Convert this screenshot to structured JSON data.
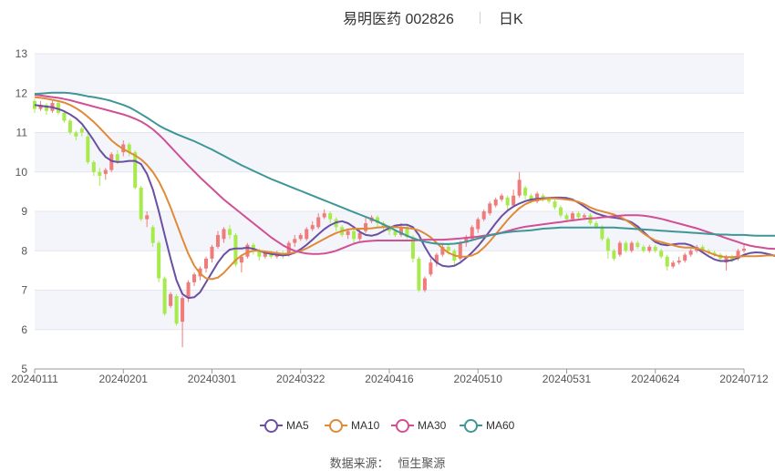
{
  "header": {
    "title": "易明医药 002826",
    "period": "日K"
  },
  "legend": [
    {
      "name": "MA5",
      "color": "#6a4fa3"
    },
    {
      "name": "MA10",
      "color": "#e08a38"
    },
    {
      "name": "MA30",
      "color": "#d14f93"
    },
    {
      "name": "MA60",
      "color": "#3e9696"
    }
  ],
  "source": {
    "label": "数据来源：",
    "value": "恒生聚源"
  },
  "colors": {
    "up": "#f07b7b",
    "down": "#a7ea4b",
    "grid": "#e4e6ee",
    "band": "#f3f5fb"
  },
  "chart_data": {
    "type": "candlestick",
    "ylim": [
      5,
      13
    ],
    "yticks": [
      5,
      6,
      7,
      8,
      9,
      10,
      11,
      12,
      13
    ],
    "xticks": [
      "20240111",
      "20240201",
      "20240301",
      "20240322",
      "20240416",
      "20240510",
      "20240531",
      "20240624",
      "20240712"
    ],
    "candles": [
      [
        11.8,
        11.6,
        11.85,
        11.5
      ],
      [
        11.6,
        11.7,
        11.8,
        11.55
      ],
      [
        11.7,
        11.55,
        11.75,
        11.45
      ],
      [
        11.55,
        11.75,
        11.8,
        11.5
      ],
      [
        11.75,
        11.5,
        11.8,
        11.45
      ],
      [
        11.5,
        11.3,
        11.55,
        11.25
      ],
      [
        11.3,
        11.0,
        11.35,
        10.95
      ],
      [
        11.0,
        10.9,
        11.05,
        10.8
      ],
      [
        11.1,
        11.0,
        11.15,
        10.9
      ],
      [
        10.9,
        10.25,
        11.0,
        10.2
      ],
      [
        10.25,
        10.0,
        10.3,
        9.9
      ],
      [
        10.0,
        9.9,
        10.1,
        9.65
      ],
      [
        9.95,
        10.05,
        10.1,
        9.8
      ],
      [
        10.05,
        10.45,
        10.5,
        10.0
      ],
      [
        10.45,
        10.25,
        10.55,
        10.2
      ],
      [
        10.5,
        10.7,
        10.8,
        10.4
      ],
      [
        10.7,
        10.5,
        10.75,
        10.4
      ],
      [
        10.5,
        9.6,
        10.55,
        9.55
      ],
      [
        9.6,
        8.8,
        9.65,
        8.75
      ],
      [
        8.8,
        8.9,
        9.0,
        8.6
      ],
      [
        8.6,
        8.2,
        8.65,
        8.1
      ],
      [
        8.2,
        7.3,
        8.25,
        7.2
      ],
      [
        7.3,
        6.4,
        7.35,
        6.35
      ],
      [
        6.6,
        6.9,
        6.95,
        6.55
      ],
      [
        6.85,
        6.15,
        6.9,
        6.1
      ],
      [
        6.2,
        6.8,
        6.85,
        5.55
      ],
      [
        6.8,
        7.2,
        7.25,
        6.7
      ],
      [
        7.2,
        7.4,
        7.45,
        7.1
      ],
      [
        7.35,
        7.55,
        7.6,
        7.25
      ],
      [
        7.55,
        7.8,
        7.85,
        7.45
      ],
      [
        7.8,
        8.1,
        8.15,
        7.7
      ],
      [
        8.1,
        8.4,
        8.5,
        8.05
      ],
      [
        8.3,
        8.55,
        8.6,
        8.2
      ],
      [
        8.55,
        8.4,
        8.65,
        8.3
      ],
      [
        8.4,
        7.65,
        8.45,
        7.6
      ],
      [
        7.7,
        7.85,
        7.9,
        7.45
      ],
      [
        7.85,
        8.15,
        8.2,
        7.8
      ],
      [
        8.15,
        8.0,
        8.2,
        7.9
      ],
      [
        8.0,
        7.85,
        8.05,
        7.75
      ],
      [
        7.85,
        7.95,
        8.0,
        7.8
      ],
      [
        7.95,
        7.85,
        8.0,
        7.8
      ],
      [
        7.85,
        7.95,
        8.0,
        7.8
      ],
      [
        7.95,
        7.9,
        8.0,
        7.8
      ],
      [
        7.9,
        8.2,
        8.25,
        7.85
      ],
      [
        8.2,
        8.3,
        8.4,
        8.1
      ],
      [
        8.3,
        8.4,
        8.45,
        8.25
      ],
      [
        8.3,
        8.55,
        8.6,
        8.25
      ],
      [
        8.55,
        8.65,
        8.75,
        8.5
      ],
      [
        8.6,
        8.85,
        8.95,
        8.55
      ],
      [
        8.85,
        8.95,
        9.05,
        8.8
      ],
      [
        8.95,
        8.8,
        9.0,
        8.7
      ],
      [
        8.8,
        8.6,
        8.85,
        8.5
      ],
      [
        8.6,
        8.4,
        8.65,
        8.35
      ],
      [
        8.4,
        8.5,
        8.55,
        8.3
      ],
      [
        8.5,
        8.3,
        8.55,
        8.2
      ],
      [
        8.3,
        8.45,
        8.55,
        8.25
      ],
      [
        8.5,
        8.7,
        8.85,
        8.45
      ],
      [
        8.75,
        8.85,
        8.9,
        8.7
      ],
      [
        8.85,
        8.7,
        8.9,
        8.6
      ],
      [
        8.7,
        8.6,
        8.75,
        8.5
      ],
      [
        8.6,
        8.5,
        8.65,
        8.4
      ],
      [
        8.5,
        8.4,
        8.55,
        8.35
      ],
      [
        8.4,
        8.6,
        8.7,
        8.35
      ],
      [
        8.6,
        8.35,
        8.65,
        8.3
      ],
      [
        8.35,
        7.8,
        8.4,
        7.7
      ],
      [
        7.8,
        7.0,
        7.85,
        6.95
      ],
      [
        7.0,
        7.3,
        7.35,
        6.95
      ],
      [
        7.4,
        7.7,
        7.8,
        7.35
      ],
      [
        7.7,
        7.9,
        7.95,
        7.6
      ],
      [
        7.9,
        8.1,
        8.2,
        7.85
      ],
      [
        8.1,
        8.0,
        8.15,
        7.9
      ],
      [
        8.0,
        7.75,
        8.05,
        7.6
      ],
      [
        7.8,
        8.2,
        8.25,
        7.75
      ],
      [
        8.2,
        8.35,
        8.4,
        8.1
      ],
      [
        8.3,
        8.6,
        8.65,
        8.25
      ],
      [
        8.55,
        8.8,
        8.85,
        8.45
      ],
      [
        8.8,
        9.0,
        9.05,
        8.75
      ],
      [
        8.95,
        9.2,
        9.25,
        8.9
      ],
      [
        9.15,
        9.3,
        9.35,
        9.1
      ],
      [
        9.3,
        9.4,
        9.45,
        9.25
      ],
      [
        9.35,
        9.15,
        9.4,
        9.05
      ],
      [
        9.15,
        9.4,
        9.55,
        9.1
      ],
      [
        9.4,
        9.8,
        10.0,
        9.35
      ],
      [
        9.6,
        9.4,
        9.65,
        9.3
      ],
      [
        9.4,
        9.25,
        9.45,
        9.2
      ],
      [
        9.25,
        9.45,
        9.5,
        9.2
      ],
      [
        9.4,
        9.3,
        9.45,
        9.25
      ],
      [
        9.3,
        9.25,
        9.35,
        9.2
      ],
      [
        9.25,
        9.1,
        9.3,
        9.05
      ],
      [
        9.1,
        8.9,
        9.15,
        8.85
      ],
      [
        8.9,
        8.8,
        8.95,
        8.75
      ],
      [
        8.8,
        8.95,
        9.0,
        8.75
      ],
      [
        8.95,
        8.85,
        9.0,
        8.8
      ],
      [
        8.85,
        8.9,
        8.95,
        8.8
      ],
      [
        8.9,
        8.7,
        8.95,
        8.65
      ],
      [
        8.7,
        8.6,
        8.75,
        8.55
      ],
      [
        8.6,
        8.3,
        8.65,
        8.25
      ],
      [
        8.3,
        8.0,
        8.35,
        7.8
      ],
      [
        8.0,
        7.8,
        8.05,
        7.75
      ],
      [
        7.9,
        8.2,
        8.25,
        7.85
      ],
      [
        8.2,
        8.0,
        8.25,
        7.95
      ],
      [
        8.0,
        8.2,
        8.25,
        7.95
      ],
      [
        8.2,
        8.1,
        8.25,
        8.05
      ],
      [
        8.1,
        8.0,
        8.15,
        7.95
      ],
      [
        8.0,
        8.1,
        8.15,
        7.95
      ],
      [
        8.1,
        8.0,
        8.15,
        7.95
      ],
      [
        8.0,
        7.85,
        8.05,
        7.8
      ],
      [
        7.85,
        7.6,
        7.9,
        7.5
      ],
      [
        7.6,
        7.7,
        7.75,
        7.55
      ],
      [
        7.7,
        7.75,
        7.85,
        7.65
      ],
      [
        7.75,
        7.9,
        7.95,
        7.7
      ],
      [
        7.9,
        8.0,
        8.05,
        7.85
      ],
      [
        8.0,
        8.1,
        8.15,
        7.95
      ],
      [
        8.1,
        8.0,
        8.15,
        7.95
      ],
      [
        8.0,
        7.95,
        8.05,
        7.9
      ],
      [
        7.95,
        7.9,
        8.0,
        7.85
      ],
      [
        7.9,
        7.8,
        7.95,
        7.75
      ],
      [
        7.7,
        7.85,
        7.9,
        7.5
      ],
      [
        7.85,
        7.75,
        7.9,
        7.7
      ],
      [
        7.8,
        8.0,
        8.05,
        7.75
      ],
      [
        8.0,
        8.05,
        8.15,
        7.95
      ]
    ],
    "series": [
      {
        "name": "MA5",
        "values": [
          11.7,
          11.68,
          11.66,
          11.64,
          11.6,
          11.54,
          11.46,
          11.36,
          11.22,
          11.02,
          10.8,
          10.56,
          10.38,
          10.28,
          10.25,
          10.26,
          10.28,
          10.28,
          10.2,
          9.95,
          9.55,
          9.0,
          8.4,
          7.8,
          7.25,
          6.9,
          6.8,
          6.82,
          6.95,
          7.2,
          7.45,
          7.7,
          7.9,
          8.03,
          8.06,
          8.06,
          8.08,
          8.05,
          8.0,
          7.95,
          7.92,
          7.9,
          7.88,
          7.9,
          7.95,
          8.04,
          8.15,
          8.28,
          8.42,
          8.55,
          8.65,
          8.72,
          8.75,
          8.7,
          8.6,
          8.48,
          8.4,
          8.38,
          8.42,
          8.5,
          8.58,
          8.64,
          8.66,
          8.66,
          8.6,
          8.4,
          8.1,
          7.85,
          7.7,
          7.62,
          7.6,
          7.62,
          7.7,
          7.82,
          7.96,
          8.12,
          8.3,
          8.5,
          8.7,
          8.88,
          9.02,
          9.12,
          9.2,
          9.26,
          9.3,
          9.32,
          9.33,
          9.34,
          9.35,
          9.35,
          9.34,
          9.3,
          9.22,
          9.12,
          9.02,
          8.95,
          8.9,
          8.86,
          8.84,
          8.82,
          8.78,
          8.72,
          8.62,
          8.48,
          8.34,
          8.22,
          8.16,
          8.14,
          8.16,
          8.18,
          8.18,
          8.14,
          8.06,
          7.96,
          7.86,
          7.78,
          7.74,
          7.74,
          7.76,
          7.82,
          7.9,
          7.94,
          7.96,
          7.95,
          7.92,
          7.88,
          7.82,
          7.8,
          7.84,
          7.9
        ]
      },
      {
        "name": "MA10",
        "values": [
          11.9,
          11.88,
          11.86,
          11.83,
          11.8,
          11.76,
          11.7,
          11.62,
          11.52,
          11.4,
          11.27,
          11.12,
          10.96,
          10.8,
          10.68,
          10.58,
          10.5,
          10.42,
          10.32,
          10.18,
          10.0,
          9.76,
          9.46,
          9.1,
          8.7,
          8.3,
          7.92,
          7.62,
          7.42,
          7.3,
          7.28,
          7.32,
          7.44,
          7.6,
          7.76,
          7.88,
          7.96,
          8.0,
          8.0,
          7.98,
          7.96,
          7.94,
          7.92,
          7.93,
          7.96,
          8.0,
          8.06,
          8.14,
          8.22,
          8.3,
          8.38,
          8.45,
          8.5,
          8.54,
          8.56,
          8.56,
          8.56,
          8.57,
          8.59,
          8.6,
          8.6,
          8.6,
          8.59,
          8.58,
          8.56,
          8.52,
          8.44,
          8.34,
          8.2,
          8.06,
          7.95,
          7.88,
          7.85,
          7.85,
          7.88,
          7.95,
          8.08,
          8.24,
          8.42,
          8.6,
          8.78,
          8.94,
          9.08,
          9.18,
          9.25,
          9.29,
          9.31,
          9.33,
          9.33,
          9.32,
          9.3,
          9.28,
          9.24,
          9.18,
          9.1,
          9.04,
          9.0,
          8.96,
          8.92,
          8.86,
          8.78,
          8.68,
          8.56,
          8.44,
          8.34,
          8.26,
          8.22,
          8.18,
          8.14,
          8.1,
          8.08,
          8.08,
          8.06,
          8.02,
          7.96,
          7.9,
          7.86,
          7.84,
          7.84,
          7.85,
          7.86,
          7.86,
          7.86,
          7.87,
          7.88,
          7.88,
          7.88,
          7.86,
          7.86,
          7.88
        ]
      },
      {
        "name": "MA30",
        "values": [
          11.96,
          11.94,
          11.92,
          11.9,
          11.88,
          11.85,
          11.82,
          11.78,
          11.74,
          11.7,
          11.66,
          11.62,
          11.58,
          11.54,
          11.5,
          11.46,
          11.41,
          11.35,
          11.28,
          11.19,
          11.08,
          10.95,
          10.8,
          10.64,
          10.48,
          10.32,
          10.16,
          10.01,
          9.86,
          9.72,
          9.58,
          9.44,
          9.3,
          9.18,
          9.06,
          8.94,
          8.82,
          8.7,
          8.58,
          8.46,
          8.34,
          8.24,
          8.14,
          8.06,
          8.0,
          7.96,
          7.93,
          7.92,
          7.92,
          7.93,
          7.96,
          8.0,
          8.06,
          8.12,
          8.18,
          8.22,
          8.24,
          8.25,
          8.26,
          8.26,
          8.26,
          8.26,
          8.26,
          8.26,
          8.26,
          8.27,
          8.28,
          8.28,
          8.28,
          8.28,
          8.29,
          8.3,
          8.31,
          8.33,
          8.34,
          8.36,
          8.38,
          8.4,
          8.43,
          8.46,
          8.5,
          8.54,
          8.58,
          8.61,
          8.63,
          8.65,
          8.67,
          8.69,
          8.71,
          8.73,
          8.75,
          8.77,
          8.79,
          8.81,
          8.82,
          8.83,
          8.85,
          8.86,
          8.88,
          8.89,
          8.9,
          8.9,
          8.9,
          8.89,
          8.87,
          8.84,
          8.81,
          8.77,
          8.73,
          8.69,
          8.65,
          8.61,
          8.57,
          8.52,
          8.47,
          8.42,
          8.37,
          8.32,
          8.27,
          8.22,
          8.17,
          8.13,
          8.1,
          8.08,
          8.06,
          8.05,
          8.05,
          8.05,
          8.06,
          8.07
        ]
      },
      {
        "name": "MA60",
        "values": [
          11.98,
          11.99,
          12.0,
          12.01,
          12.01,
          12.01,
          12.0,
          11.98,
          11.95,
          11.92,
          11.9,
          11.87,
          11.84,
          11.8,
          11.75,
          11.7,
          11.64,
          11.56,
          11.47,
          11.38,
          11.28,
          11.18,
          11.1,
          11.03,
          10.96,
          10.9,
          10.84,
          10.78,
          10.71,
          10.64,
          10.57,
          10.49,
          10.41,
          10.33,
          10.25,
          10.17,
          10.1,
          10.03,
          9.96,
          9.89,
          9.82,
          9.76,
          9.7,
          9.64,
          9.58,
          9.52,
          9.46,
          9.4,
          9.34,
          9.28,
          9.22,
          9.16,
          9.1,
          9.04,
          8.98,
          8.92,
          8.86,
          8.8,
          8.74,
          8.67,
          8.6,
          8.52,
          8.45,
          8.38,
          8.32,
          8.27,
          8.23,
          8.2,
          8.18,
          8.17,
          8.17,
          8.18,
          8.2,
          8.23,
          8.27,
          8.31,
          8.35,
          8.39,
          8.42,
          8.45,
          8.47,
          8.49,
          8.5,
          8.51,
          8.52,
          8.54,
          8.56,
          8.57,
          8.58,
          8.59,
          8.59,
          8.59,
          8.59,
          8.59,
          8.59,
          8.59,
          8.59,
          8.59,
          8.59,
          8.58,
          8.57,
          8.56,
          8.55,
          8.54,
          8.53,
          8.52,
          8.51,
          8.5,
          8.49,
          8.48,
          8.47,
          8.46,
          8.45,
          8.44,
          8.43,
          8.42,
          8.41,
          8.41,
          8.4,
          8.4,
          8.4,
          8.39,
          8.38,
          8.38,
          8.38,
          8.38,
          8.38
        ]
      }
    ]
  }
}
